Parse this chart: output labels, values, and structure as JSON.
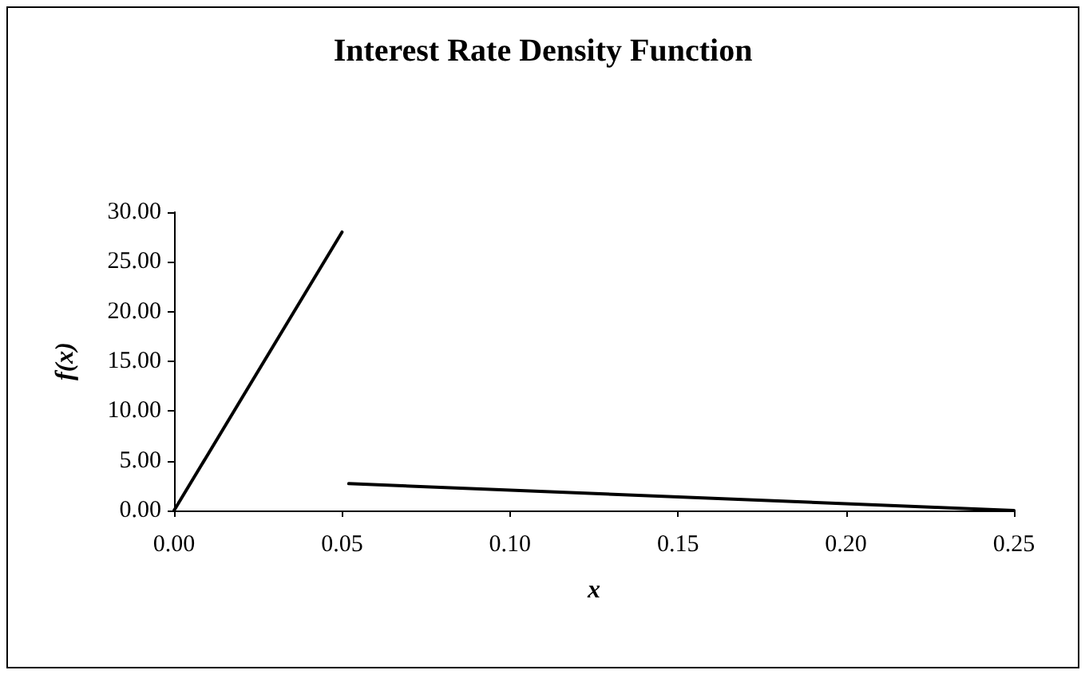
{
  "chart_data": {
    "type": "line",
    "title": "Interest Rate Density Function",
    "xlabel": "x",
    "ylabel": "f(x)",
    "series": [
      {
        "color": "#000000",
        "x": [
          0,
          0.05
        ],
        "values": [
          0,
          28
        ]
      },
      {
        "color": "#000000",
        "x": [
          0.052,
          0.25
        ],
        "values": [
          2.7,
          0
        ]
      }
    ],
    "xlim": [
      0,
      0.25
    ],
    "xticks": [
      {
        "value": 0,
        "label": "0.00"
      },
      {
        "value": 0.05,
        "label": "0.05"
      },
      {
        "value": 0.1,
        "label": "0.10"
      },
      {
        "value": 0.15,
        "label": "0.15"
      },
      {
        "value": 0.2,
        "label": "0.20"
      },
      {
        "value": 0.25,
        "label": "0.25"
      }
    ],
    "ylim": [
      0,
      30
    ],
    "yticks": [
      {
        "value": 0,
        "label": "0.00"
      },
      {
        "value": 5,
        "label": "5.00"
      },
      {
        "value": 10,
        "label": "10.00"
      },
      {
        "value": 15,
        "label": "15.00"
      },
      {
        "value": 20,
        "label": "20.00"
      },
      {
        "value": 25,
        "label": "25.00"
      },
      {
        "value": 30,
        "label": "30.00"
      }
    ],
    "marker": "none",
    "line_style": "solid"
  }
}
